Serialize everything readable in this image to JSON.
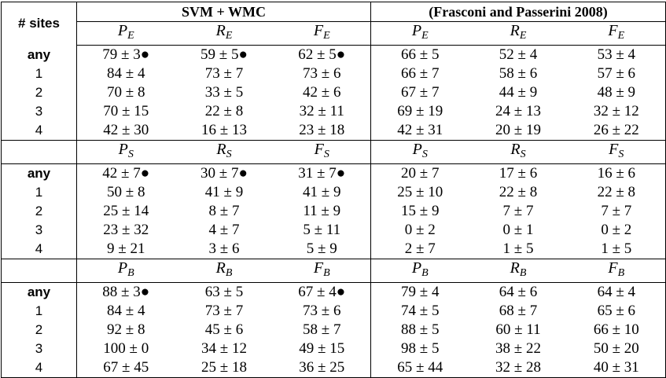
{
  "header": {
    "sites_label": "# sites",
    "groups": [
      "SVM + WMC",
      "(Frasconi and Passerini 2008)"
    ]
  },
  "sections": [
    {
      "columns": [
        {
          "main": "P",
          "sub": "E"
        },
        {
          "main": "R",
          "sub": "E"
        },
        {
          "main": "F",
          "sub": "E"
        },
        {
          "main": "P",
          "sub": "E"
        },
        {
          "main": "R",
          "sub": "E"
        },
        {
          "main": "F",
          "sub": "E"
        }
      ],
      "rows": [
        {
          "label": "any",
          "cells": [
            "79 ± 3●",
            "59 ± 5●",
            "62 ± 5●",
            "66 ± 5",
            "52 ± 4",
            "53 ± 4"
          ]
        },
        {
          "label": "1",
          "cells": [
            "84 ± 4",
            "73 ± 7",
            "73 ± 6",
            "66 ± 7",
            "58 ± 6",
            "57 ± 6"
          ]
        },
        {
          "label": "2",
          "cells": [
            "70 ± 8",
            "33 ± 5",
            "42 ± 6",
            "67 ± 7",
            "44 ± 9",
            "48 ± 9"
          ]
        },
        {
          "label": "3",
          "cells": [
            "70 ± 15",
            "22 ± 8",
            "32 ± 11",
            "69 ± 19",
            "24 ± 13",
            "32 ± 12"
          ]
        },
        {
          "label": "4",
          "cells": [
            "42 ± 30",
            "16 ± 13",
            "23 ± 18",
            "42 ± 31",
            "20 ± 19",
            "26 ± 22"
          ]
        }
      ]
    },
    {
      "columns": [
        {
          "main": "P",
          "sub": "S"
        },
        {
          "main": "R",
          "sub": "S"
        },
        {
          "main": "F",
          "sub": "S"
        },
        {
          "main": "P",
          "sub": "S"
        },
        {
          "main": "R",
          "sub": "S"
        },
        {
          "main": "F",
          "sub": "S"
        }
      ],
      "rows": [
        {
          "label": "any",
          "cells": [
            "42 ± 7●",
            "30 ± 7●",
            "31 ± 7●",
            "20 ± 7",
            "17 ± 6",
            "16 ± 6"
          ]
        },
        {
          "label": "1",
          "cells": [
            "50 ± 8",
            "41 ± 9",
            "41 ± 9",
            "25 ± 10",
            "22 ± 8",
            "22 ± 8"
          ]
        },
        {
          "label": "2",
          "cells": [
            "25 ± 14",
            "8 ± 7",
            "11 ± 9",
            "15 ± 9",
            "7 ± 7",
            "7 ± 7"
          ]
        },
        {
          "label": "3",
          "cells": [
            "23 ± 32",
            "4 ± 7",
            "5 ± 11",
            "0 ± 2",
            "0 ± 1",
            "0 ± 2"
          ]
        },
        {
          "label": "4",
          "cells": [
            "9 ± 21",
            "3 ± 6",
            "5 ± 9",
            "2 ± 7",
            "1 ± 5",
            "1 ± 5"
          ]
        }
      ]
    },
    {
      "columns": [
        {
          "main": "P",
          "sub": "B"
        },
        {
          "main": "R",
          "sub": "B"
        },
        {
          "main": "F",
          "sub": "B"
        },
        {
          "main": "P",
          "sub": "B"
        },
        {
          "main": "R",
          "sub": "B"
        },
        {
          "main": "F",
          "sub": "B"
        }
      ],
      "rows": [
        {
          "label": "any",
          "cells": [
            "88 ± 3●",
            "63 ± 5",
            "67 ± 4●",
            "79 ± 4",
            "64 ± 6",
            "64 ± 4"
          ]
        },
        {
          "label": "1",
          "cells": [
            "84 ± 4",
            "73 ± 7",
            "73 ± 6",
            "74 ± 5",
            "68 ± 7",
            "65 ± 6"
          ]
        },
        {
          "label": "2",
          "cells": [
            "92 ± 8",
            "45 ± 6",
            "58 ± 7",
            "88 ± 5",
            "60 ± 11",
            "66 ± 10"
          ]
        },
        {
          "label": "3",
          "cells": [
            "100 ± 0",
            "34 ± 12",
            "49 ± 15",
            "98 ± 5",
            "38 ± 22",
            "50 ± 20"
          ]
        },
        {
          "label": "4",
          "cells": [
            "67 ± 45",
            "25 ± 18",
            "36 ± 25",
            "65 ± 44",
            "32 ± 28",
            "40 ± 31"
          ]
        }
      ]
    }
  ]
}
